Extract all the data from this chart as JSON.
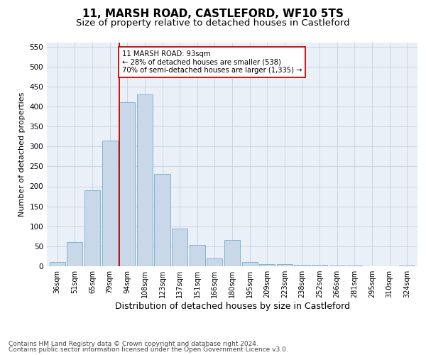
{
  "title": "11, MARSH ROAD, CASTLEFORD, WF10 5TS",
  "subtitle": "Size of property relative to detached houses in Castleford",
  "xlabel": "Distribution of detached houses by size in Castleford",
  "ylabel": "Number of detached properties",
  "categories": [
    "36sqm",
    "51sqm",
    "65sqm",
    "79sqm",
    "94sqm",
    "108sqm",
    "123sqm",
    "137sqm",
    "151sqm",
    "166sqm",
    "180sqm",
    "195sqm",
    "209sqm",
    "223sqm",
    "238sqm",
    "252sqm",
    "266sqm",
    "281sqm",
    "295sqm",
    "310sqm",
    "324sqm"
  ],
  "values": [
    10,
    60,
    190,
    315,
    410,
    430,
    232,
    95,
    53,
    20,
    65,
    10,
    6,
    5,
    4,
    3,
    2,
    1,
    0,
    0,
    1
  ],
  "bar_color": "#c8d8e8",
  "bar_edge_color": "#7aaac8",
  "vline_index": 4,
  "vline_color": "#cc0000",
  "annotation_text": "11 MARSH ROAD: 93sqm\n← 28% of detached houses are smaller (538)\n70% of semi-detached houses are larger (1,335) →",
  "annotation_box_color": "#ffffff",
  "annotation_box_edge": "#cc0000",
  "ylim": [
    0,
    560
  ],
  "yticks": [
    0,
    50,
    100,
    150,
    200,
    250,
    300,
    350,
    400,
    450,
    500,
    550
  ],
  "grid_color": "#c8d0e0",
  "background_color": "#eaf0f8",
  "footer_line1": "Contains HM Land Registry data © Crown copyright and database right 2024.",
  "footer_line2": "Contains public sector information licensed under the Open Government Licence v3.0.",
  "title_fontsize": 11,
  "subtitle_fontsize": 9.5,
  "xlabel_fontsize": 9,
  "ylabel_fontsize": 8,
  "tick_fontsize": 7.5,
  "footer_fontsize": 6.5
}
